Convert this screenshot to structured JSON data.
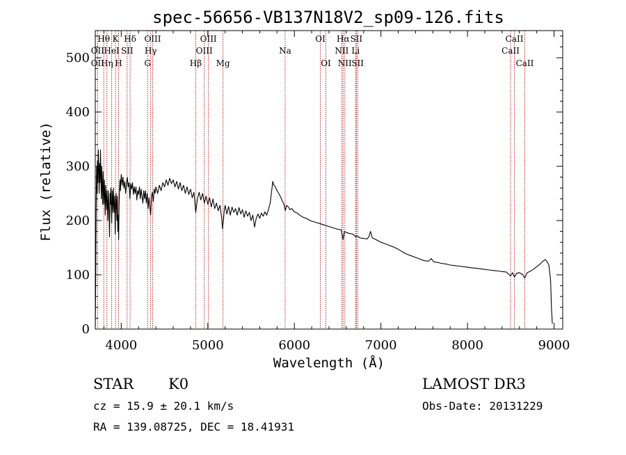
{
  "chart_data": {
    "type": "line",
    "title": "spec-56656-VB137N18V2_sp09-126.fits",
    "xlabel": "Wavelength (Å)",
    "ylabel": "Flux (relative)",
    "xlim": [
      3700,
      9100
    ],
    "ylim": [
      0,
      550
    ],
    "x_ticks": [
      4000,
      5000,
      6000,
      7000,
      8000,
      9000
    ],
    "y_ticks": [
      0,
      100,
      200,
      300,
      400,
      500
    ],
    "grid": false,
    "series": [
      {
        "name": "flux",
        "color": "#000000",
        "points": [
          [
            3700,
            5
          ],
          [
            3705,
            90
          ],
          [
            3710,
            210
          ],
          [
            3715,
            300
          ],
          [
            3720,
            250
          ],
          [
            3725,
            310
          ],
          [
            3730,
            270
          ],
          [
            3735,
            330
          ],
          [
            3740,
            290
          ],
          [
            3745,
            250
          ],
          [
            3750,
            305
          ],
          [
            3755,
            270
          ],
          [
            3760,
            330
          ],
          [
            3765,
            280
          ],
          [
            3770,
            240
          ],
          [
            3775,
            300
          ],
          [
            3780,
            260
          ],
          [
            3785,
            230
          ],
          [
            3790,
            290
          ],
          [
            3795,
            255
          ],
          [
            3800,
            230
          ],
          [
            3805,
            275
          ],
          [
            3810,
            245
          ],
          [
            3815,
            210
          ],
          [
            3820,
            265
          ],
          [
            3825,
            240
          ],
          [
            3830,
            220
          ],
          [
            3835,
            255
          ],
          [
            3840,
            230
          ],
          [
            3845,
            200
          ],
          [
            3850,
            255
          ],
          [
            3855,
            235
          ],
          [
            3860,
            210
          ],
          [
            3865,
            170
          ],
          [
            3870,
            250
          ],
          [
            3875,
            230
          ],
          [
            3880,
            260
          ],
          [
            3885,
            225
          ],
          [
            3890,
            195
          ],
          [
            3895,
            255
          ],
          [
            3900,
            240
          ],
          [
            3905,
            215
          ],
          [
            3910,
            260
          ],
          [
            3915,
            230
          ],
          [
            3920,
            215
          ],
          [
            3925,
            245
          ],
          [
            3930,
            175
          ],
          [
            3935,
            220
          ],
          [
            3940,
            250
          ],
          [
            3945,
            230
          ],
          [
            3950,
            200
          ],
          [
            3955,
            245
          ],
          [
            3960,
            180
          ],
          [
            3965,
            210
          ],
          [
            3970,
            165
          ],
          [
            3975,
            230
          ],
          [
            3980,
            255
          ],
          [
            3985,
            275
          ],
          [
            3990,
            255
          ],
          [
            3995,
            270
          ],
          [
            4000,
            285
          ],
          [
            4010,
            265
          ],
          [
            4020,
            280
          ],
          [
            4030,
            260
          ],
          [
            4040,
            272
          ],
          [
            4050,
            250
          ],
          [
            4060,
            268
          ],
          [
            4070,
            280
          ],
          [
            4080,
            262
          ],
          [
            4090,
            270
          ],
          [
            4100,
            240
          ],
          [
            4110,
            268
          ],
          [
            4120,
            258
          ],
          [
            4130,
            270
          ],
          [
            4140,
            248
          ],
          [
            4150,
            262
          ],
          [
            4160,
            250
          ],
          [
            4170,
            262
          ],
          [
            4180,
            238
          ],
          [
            4190,
            255
          ],
          [
            4200,
            248
          ],
          [
            4210,
            262
          ],
          [
            4220,
            240
          ],
          [
            4230,
            258
          ],
          [
            4240,
            245
          ],
          [
            4250,
            232
          ],
          [
            4260,
            255
          ],
          [
            4270,
            240
          ],
          [
            4280,
            255
          ],
          [
            4290,
            232
          ],
          [
            4300,
            250
          ],
          [
            4310,
            222
          ],
          [
            4320,
            242
          ],
          [
            4330,
            225
          ],
          [
            4340,
            210
          ],
          [
            4350,
            245
          ],
          [
            4360,
            252
          ],
          [
            4370,
            235
          ],
          [
            4380,
            258
          ],
          [
            4390,
            250
          ],
          [
            4400,
            262
          ],
          [
            4420,
            250
          ],
          [
            4440,
            265
          ],
          [
            4460,
            255
          ],
          [
            4480,
            270
          ],
          [
            4500,
            262
          ],
          [
            4520,
            275
          ],
          [
            4540,
            265
          ],
          [
            4560,
            278
          ],
          [
            4580,
            268
          ],
          [
            4600,
            275
          ],
          [
            4620,
            262
          ],
          [
            4640,
            272
          ],
          [
            4660,
            258
          ],
          [
            4680,
            270
          ],
          [
            4700,
            255
          ],
          [
            4720,
            265
          ],
          [
            4740,
            250
          ],
          [
            4760,
            262
          ],
          [
            4780,
            248
          ],
          [
            4800,
            258
          ],
          [
            4820,
            242
          ],
          [
            4840,
            252
          ],
          [
            4860,
            215
          ],
          [
            4880,
            240
          ],
          [
            4900,
            252
          ],
          [
            4920,
            238
          ],
          [
            4940,
            250
          ],
          [
            4960,
            232
          ],
          [
            4980,
            245
          ],
          [
            5000,
            230
          ],
          [
            5020,
            242
          ],
          [
            5040,
            225
          ],
          [
            5060,
            240
          ],
          [
            5080,
            222
          ],
          [
            5100,
            232
          ],
          [
            5120,
            218
          ],
          [
            5140,
            228
          ],
          [
            5160,
            205
          ],
          [
            5170,
            185
          ],
          [
            5180,
            200
          ],
          [
            5190,
            218
          ],
          [
            5200,
            228
          ],
          [
            5220,
            212
          ],
          [
            5240,
            226
          ],
          [
            5260,
            210
          ],
          [
            5280,
            225
          ],
          [
            5300,
            215
          ],
          [
            5320,
            222
          ],
          [
            5340,
            210
          ],
          [
            5360,
            224
          ],
          [
            5380,
            212
          ],
          [
            5400,
            220
          ],
          [
            5420,
            206
          ],
          [
            5440,
            218
          ],
          [
            5460,
            208
          ],
          [
            5480,
            215
          ],
          [
            5500,
            200
          ],
          [
            5520,
            210
          ],
          [
            5540,
            188
          ],
          [
            5560,
            205
          ],
          [
            5580,
            212
          ],
          [
            5600,
            204
          ],
          [
            5620,
            214
          ],
          [
            5640,
            208
          ],
          [
            5660,
            216
          ],
          [
            5680,
            210
          ],
          [
            5700,
            220
          ],
          [
            5720,
            232
          ],
          [
            5740,
            258
          ],
          [
            5750,
            272
          ],
          [
            5760,
            266
          ],
          [
            5780,
            262
          ],
          [
            5800,
            255
          ],
          [
            5820,
            250
          ],
          [
            5840,
            244
          ],
          [
            5860,
            236
          ],
          [
            5880,
            230
          ],
          [
            5895,
            218
          ],
          [
            5910,
            228
          ],
          [
            5930,
            225
          ],
          [
            5950,
            220
          ],
          [
            5970,
            222
          ],
          [
            6000,
            216
          ],
          [
            6030,
            214
          ],
          [
            6060,
            210
          ],
          [
            6100,
            206
          ],
          [
            6140,
            204
          ],
          [
            6180,
            200
          ],
          [
            6220,
            198
          ],
          [
            6260,
            196
          ],
          [
            6300,
            194
          ],
          [
            6340,
            192
          ],
          [
            6380,
            190
          ],
          [
            6420,
            188
          ],
          [
            6460,
            186
          ],
          [
            6500,
            184
          ],
          [
            6540,
            183
          ],
          [
            6563,
            165
          ],
          [
            6580,
            180
          ],
          [
            6600,
            178
          ],
          [
            6640,
            176
          ],
          [
            6680,
            175
          ],
          [
            6708,
            170
          ],
          [
            6720,
            172
          ],
          [
            6760,
            168
          ],
          [
            6800,
            167
          ],
          [
            6840,
            166
          ],
          [
            6860,
            170
          ],
          [
            6880,
            180
          ],
          [
            6900,
            168
          ],
          [
            6940,
            165
          ],
          [
            7000,
            160
          ],
          [
            7050,
            157
          ],
          [
            7100,
            154
          ],
          [
            7150,
            151
          ],
          [
            7200,
            147
          ],
          [
            7250,
            142
          ],
          [
            7300,
            138
          ],
          [
            7350,
            135
          ],
          [
            7400,
            132
          ],
          [
            7450,
            129
          ],
          [
            7500,
            126
          ],
          [
            7550,
            125
          ],
          [
            7580,
            130
          ],
          [
            7610,
            124
          ],
          [
            7650,
            123
          ],
          [
            7700,
            121
          ],
          [
            7750,
            120
          ],
          [
            7800,
            118
          ],
          [
            7850,
            117
          ],
          [
            7900,
            116
          ],
          [
            7950,
            115
          ],
          [
            8000,
            114
          ],
          [
            8050,
            113
          ],
          [
            8100,
            112
          ],
          [
            8150,
            111
          ],
          [
            8200,
            110
          ],
          [
            8250,
            109
          ],
          [
            8300,
            108
          ],
          [
            8350,
            107
          ],
          [
            8400,
            106
          ],
          [
            8450,
            105
          ],
          [
            8498,
            98
          ],
          [
            8520,
            104
          ],
          [
            8542,
            96
          ],
          [
            8570,
            103
          ],
          [
            8600,
            104
          ],
          [
            8640,
            100
          ],
          [
            8662,
            94
          ],
          [
            8690,
            104
          ],
          [
            8720,
            106
          ],
          [
            8760,
            110
          ],
          [
            8800,
            115
          ],
          [
            8840,
            120
          ],
          [
            8870,
            125
          ],
          [
            8900,
            128
          ],
          [
            8920,
            124
          ],
          [
            8940,
            118
          ],
          [
            8960,
            90
          ],
          [
            8970,
            40
          ],
          [
            8980,
            10
          ]
        ]
      }
    ],
    "annotations": [
      {
        "label": "Hθ",
        "x": 3798,
        "row": 1
      },
      {
        "label": "OII",
        "x": 3727,
        "row": 2
      },
      {
        "label": "OII",
        "x": 3727,
        "row": 3
      },
      {
        "label": "Hη",
        "x": 3835,
        "row": 3
      },
      {
        "label": "K",
        "x": 3934,
        "row": 1
      },
      {
        "label": "HeI",
        "x": 3889,
        "row": 2
      },
      {
        "label": "H",
        "x": 3969,
        "row": 3
      },
      {
        "label": "Hδ",
        "x": 4102,
        "row": 1
      },
      {
        "label": "SII",
        "x": 4068,
        "row": 2
      },
      {
        "label": "OIII",
        "x": 4363,
        "row": 1
      },
      {
        "label": "Hγ",
        "x": 4340,
        "row": 2
      },
      {
        "label": "G",
        "x": 4304,
        "row": 3
      },
      {
        "label": "OIII",
        "x": 5007,
        "row": 1
      },
      {
        "label": "OIII",
        "x": 4959,
        "row": 2
      },
      {
        "label": "Hβ",
        "x": 4861,
        "row": 3
      },
      {
        "label": "Mg",
        "x": 5175,
        "row": 3
      },
      {
        "label": "Na",
        "x": 5893,
        "row": 2
      },
      {
        "label": "OI",
        "x": 6300,
        "row": 1
      },
      {
        "label": "OI",
        "x": 6364,
        "row": 3
      },
      {
        "label": "Hα",
        "x": 6563,
        "row": 1
      },
      {
        "label": "SII",
        "x": 6716,
        "row": 1
      },
      {
        "label": "NII",
        "x": 6548,
        "row": 2
      },
      {
        "label": "Li",
        "x": 6708,
        "row": 2
      },
      {
        "label": "NII",
        "x": 6583,
        "row": 3
      },
      {
        "label": "SII",
        "x": 6731,
        "row": 3
      },
      {
        "label": "CaII",
        "x": 8542,
        "row": 1
      },
      {
        "label": "CaII",
        "x": 8498,
        "row": 2
      },
      {
        "label": "CaII",
        "x": 8662,
        "row": 3
      }
    ],
    "line_marker_x": [
      3727,
      3798,
      3835,
      3889,
      3934,
      3969,
      4068,
      4102,
      4304,
      4340,
      4363,
      4861,
      4959,
      5007,
      5175,
      5893,
      6300,
      6364,
      6548,
      6563,
      6583,
      6708,
      6716,
      6731,
      8498,
      8542,
      8662
    ],
    "marker_color": "#c02020"
  },
  "info": {
    "object_type": "STAR",
    "subclass": "K0",
    "survey": "LAMOST DR3",
    "redshift_line": "cz = 15.9 ± 20.1 km/s",
    "obs_date": "Obs-Date: 20131229",
    "coords": "RA = 139.08725, DEC =  18.41931"
  }
}
